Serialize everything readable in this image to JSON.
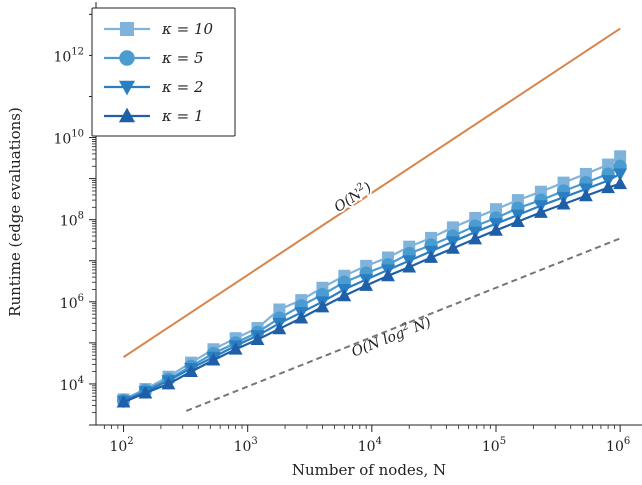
{
  "chart_data": {
    "type": "line",
    "xlabel": "Number of nodes, N",
    "ylabel": "Runtime (edge evaluations)",
    "xscale": "log",
    "yscale": "log",
    "xlim": [
      60,
      1500000
    ],
    "ylim": [
      1000,
      20000000000000
    ],
    "grid": false,
    "legend_position": "top-left",
    "x_ticks": [
      {
        "value": 100,
        "base": "10",
        "exp": "2"
      },
      {
        "value": 1000,
        "base": "10",
        "exp": "3"
      },
      {
        "value": 10000,
        "base": "10",
        "exp": "4"
      },
      {
        "value": 100000,
        "base": "10",
        "exp": "5"
      },
      {
        "value": 1000000,
        "base": "10",
        "exp": "6"
      }
    ],
    "y_ticks": [
      {
        "value": 10000,
        "base": "10",
        "exp": "4"
      },
      {
        "value": 1000000,
        "base": "10",
        "exp": "6"
      },
      {
        "value": 100000000,
        "base": "10",
        "exp": "8"
      },
      {
        "value": 10000000000,
        "base": "10",
        "exp": "10"
      },
      {
        "value": 1000000000000,
        "base": "10",
        "exp": "12"
      }
    ],
    "series": [
      {
        "name": "κ = 10",
        "marker": "square",
        "color": "#7fb3dc",
        "points": [
          [
            100,
            4200
          ],
          [
            150,
            7500
          ],
          [
            230,
            15000
          ],
          [
            350,
            33000
          ],
          [
            530,
            70000
          ],
          [
            800,
            130000
          ],
          [
            1200,
            230000
          ],
          [
            1800,
            650000
          ],
          [
            2700,
            1100000
          ],
          [
            4000,
            2200000
          ],
          [
            6000,
            4300000
          ],
          [
            9000,
            7500000
          ],
          [
            13500,
            12000000
          ],
          [
            20000,
            22000000
          ],
          [
            30000,
            36000000
          ],
          [
            45000,
            65000000
          ],
          [
            68000,
            110000000
          ],
          [
            100000,
            180000000
          ],
          [
            150000,
            300000000
          ],
          [
            230000,
            480000000
          ],
          [
            350000,
            800000000
          ],
          [
            530000,
            1300000000
          ],
          [
            800000,
            2200000000
          ],
          [
            1000000,
            3500000000
          ]
        ]
      },
      {
        "name": "κ = 5",
        "marker": "circle",
        "color": "#4a9bd0",
        "points": [
          [
            100,
            4000
          ],
          [
            150,
            7000
          ],
          [
            230,
            13000
          ],
          [
            350,
            27000
          ],
          [
            530,
            55000
          ],
          [
            800,
            100000
          ],
          [
            1200,
            180000
          ],
          [
            1800,
            400000
          ],
          [
            2700,
            800000
          ],
          [
            4000,
            1500000
          ],
          [
            6000,
            3000000
          ],
          [
            9000,
            5000000
          ],
          [
            13500,
            8000000
          ],
          [
            20000,
            15000000
          ],
          [
            30000,
            24000000
          ],
          [
            45000,
            40000000
          ],
          [
            68000,
            70000000
          ],
          [
            100000,
            110000000
          ],
          [
            150000,
            190000000
          ],
          [
            230000,
            300000000
          ],
          [
            350000,
            500000000
          ],
          [
            530000,
            800000000
          ],
          [
            800000,
            1300000000
          ],
          [
            1000000,
            2000000000
          ]
        ]
      },
      {
        "name": "κ = 2",
        "marker": "triangle-down",
        "color": "#2a7ec2",
        "points": [
          [
            100,
            3800
          ],
          [
            150,
            6500
          ],
          [
            230,
            12000
          ],
          [
            350,
            24000
          ],
          [
            530,
            45000
          ],
          [
            800,
            85000
          ],
          [
            1200,
            150000
          ],
          [
            1800,
            300000
          ],
          [
            2700,
            550000
          ],
          [
            4000,
            1000000
          ],
          [
            6000,
            2000000
          ],
          [
            9000,
            3500000
          ],
          [
            13500,
            6000000
          ],
          [
            20000,
            10000000
          ],
          [
            30000,
            17000000
          ],
          [
            45000,
            29000000
          ],
          [
            68000,
            50000000
          ],
          [
            100000,
            80000000
          ],
          [
            150000,
            130000000
          ],
          [
            230000,
            220000000
          ],
          [
            350000,
            350000000
          ],
          [
            530000,
            560000000
          ],
          [
            800000,
            900000000
          ],
          [
            1000000,
            1300000000
          ]
        ]
      },
      {
        "name": "κ = 1",
        "marker": "triangle-up",
        "color": "#1f5fa8",
        "points": [
          [
            100,
            3600
          ],
          [
            150,
            6000
          ],
          [
            230,
            10000
          ],
          [
            350,
            20000
          ],
          [
            530,
            38000
          ],
          [
            800,
            70000
          ],
          [
            1200,
            120000
          ],
          [
            1800,
            220000
          ],
          [
            2700,
            400000
          ],
          [
            4000,
            750000
          ],
          [
            6000,
            1400000
          ],
          [
            9000,
            2500000
          ],
          [
            13500,
            4300000
          ],
          [
            20000,
            7000000
          ],
          [
            30000,
            12000000
          ],
          [
            45000,
            20000000
          ],
          [
            68000,
            34000000
          ],
          [
            100000,
            55000000
          ],
          [
            150000,
            90000000
          ],
          [
            230000,
            150000000
          ],
          [
            350000,
            240000000
          ],
          [
            530000,
            380000000
          ],
          [
            800000,
            600000000
          ],
          [
            1000000,
            750000000
          ]
        ]
      }
    ],
    "reference_lines": [
      {
        "name": "O(N²)",
        "label_text": "O(N",
        "label_sup": "2",
        "label_close": ")",
        "color": "#d9844a",
        "style": "solid",
        "points": [
          [
            100,
            45000
          ],
          [
            1000000,
            4500000000000
          ]
        ]
      },
      {
        "name": "O(N log² N)",
        "label_text": "O(N log",
        "label_sup": "2",
        "label_close": " N)",
        "color": "#777777",
        "style": "dashed",
        "points": [
          [
            320,
            2200
          ],
          [
            1000000,
            35000000
          ]
        ]
      }
    ]
  }
}
